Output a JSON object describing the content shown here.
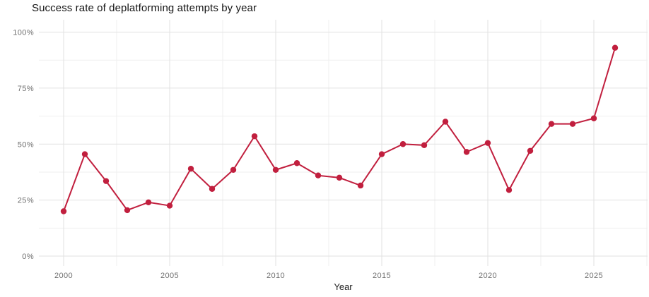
{
  "chart_data": {
    "type": "line",
    "title": "Success rate of deplatforming attempts by year",
    "xlabel": "Year",
    "ylabel": "",
    "x": [
      2000,
      2001,
      2002,
      2003,
      2004,
      2005,
      2006,
      2007,
      2008,
      2009,
      2010,
      2011,
      2012,
      2013,
      2014,
      2015,
      2016,
      2017,
      2018,
      2019,
      2020,
      2021,
      2022,
      2023,
      2024,
      2025,
      2026
    ],
    "values": [
      20,
      45.5,
      33.5,
      20.5,
      24,
      22.5,
      39,
      30,
      38.5,
      53.5,
      38.5,
      41.5,
      36,
      35,
      31.5,
      45.5,
      50,
      49.5,
      60,
      46.5,
      50.5,
      29.5,
      47,
      59,
      59,
      61.5,
      93
    ],
    "ylim": [
      0,
      100
    ],
    "yticks": [
      {
        "value": 0,
        "label": "0%"
      },
      {
        "value": 25,
        "label": "25%"
      },
      {
        "value": 50,
        "label": "50%"
      },
      {
        "value": 75,
        "label": "75%"
      },
      {
        "value": 100,
        "label": "100%"
      }
    ],
    "xticks": [
      {
        "value": 2000,
        "label": "2000"
      },
      {
        "value": 2005,
        "label": "2005"
      },
      {
        "value": 2010,
        "label": "2010"
      },
      {
        "value": 2015,
        "label": "2015"
      },
      {
        "value": 2020,
        "label": "2020"
      },
      {
        "value": 2025,
        "label": "2025"
      }
    ],
    "grid": "on",
    "legend": "none",
    "colors": {
      "line": "#c11f3e",
      "point": "#c11f3e",
      "grid_major": "#e1e1e1",
      "grid_minor": "#efefef",
      "tick_label": "#6f6f6f",
      "axis_label": "#222222",
      "title": "#141414",
      "background": "#ffffff"
    }
  }
}
